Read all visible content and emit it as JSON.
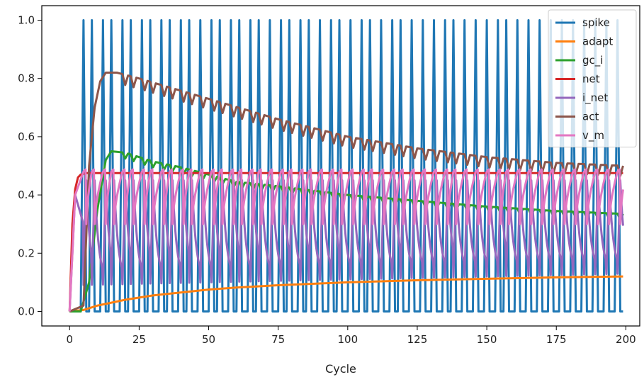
{
  "chart_data": {
    "type": "line",
    "xlabel": "Cycle",
    "ylabel": "",
    "xlim": [
      -10,
      205
    ],
    "ylim": [
      -0.05,
      1.05
    ],
    "xticks": [
      "0",
      "25",
      "50",
      "75",
      "100",
      "125",
      "150",
      "175",
      "200"
    ],
    "yticks": [
      "0.0",
      "0.2",
      "0.4",
      "0.6",
      "0.8",
      "1.0"
    ],
    "grid": false,
    "legend_position": "top-right",
    "spike_cycles": [
      5,
      8,
      12,
      15,
      19,
      22,
      26,
      29,
      33,
      36,
      40,
      43,
      47,
      51,
      54,
      58,
      61,
      65,
      68,
      72,
      76,
      79,
      83,
      86,
      90,
      94,
      97,
      101,
      105,
      108,
      112,
      116,
      119,
      123,
      127,
      131,
      135,
      138,
      142,
      146,
      150,
      154,
      157,
      161,
      165,
      169,
      173,
      177,
      181,
      185,
      189,
      193,
      197
    ],
    "series": [
      {
        "name": "spike",
        "color": "#1f77b4",
        "x": [
          0,
          199
        ],
        "y": [
          0.0,
          0.0
        ]
      },
      {
        "name": "adapt",
        "color": "#ff7f0e",
        "x": [
          0,
          5,
          10,
          20,
          30,
          40,
          50,
          60,
          75,
          100,
          125,
          150,
          175,
          199
        ],
        "y": [
          0.0,
          0.005,
          0.02,
          0.04,
          0.055,
          0.065,
          0.075,
          0.082,
          0.09,
          0.1,
          0.107,
          0.112,
          0.117,
          0.12
        ]
      },
      {
        "name": "gc_i",
        "color": "#2ca02c",
        "x": [
          0,
          4,
          7,
          10,
          13,
          15,
          20,
          25,
          30,
          40,
          50,
          60,
          75,
          100,
          125,
          150,
          175,
          199
        ],
        "y": [
          0.0,
          0.0,
          0.1,
          0.35,
          0.52,
          0.55,
          0.545,
          0.53,
          0.515,
          0.495,
          0.47,
          0.445,
          0.43,
          0.4,
          0.38,
          0.36,
          0.345,
          0.335
        ]
      },
      {
        "name": "net",
        "color": "#d62728",
        "x": [
          0,
          1,
          2,
          3,
          4,
          6,
          199
        ],
        "y": [
          0.0,
          0.3,
          0.42,
          0.46,
          0.47,
          0.475,
          0.475
        ]
      },
      {
        "name": "i_net",
        "color": "#9467bd",
        "x": [
          0,
          199
        ],
        "y": [
          0.0,
          0.15
        ]
      },
      {
        "name": "act",
        "color": "#8c564b",
        "x": [
          0,
          5,
          7,
          9,
          11,
          13,
          17,
          25,
          50,
          75,
          100,
          125,
          150,
          175,
          199
        ],
        "y": [
          0.0,
          0.02,
          0.5,
          0.7,
          0.79,
          0.82,
          0.82,
          0.8,
          0.73,
          0.66,
          0.6,
          0.56,
          0.53,
          0.51,
          0.5
        ]
      },
      {
        "name": "v_m",
        "color": "#e377c2",
        "x": [
          0,
          199
        ],
        "y": [
          0.0,
          0.48
        ]
      }
    ]
  }
}
